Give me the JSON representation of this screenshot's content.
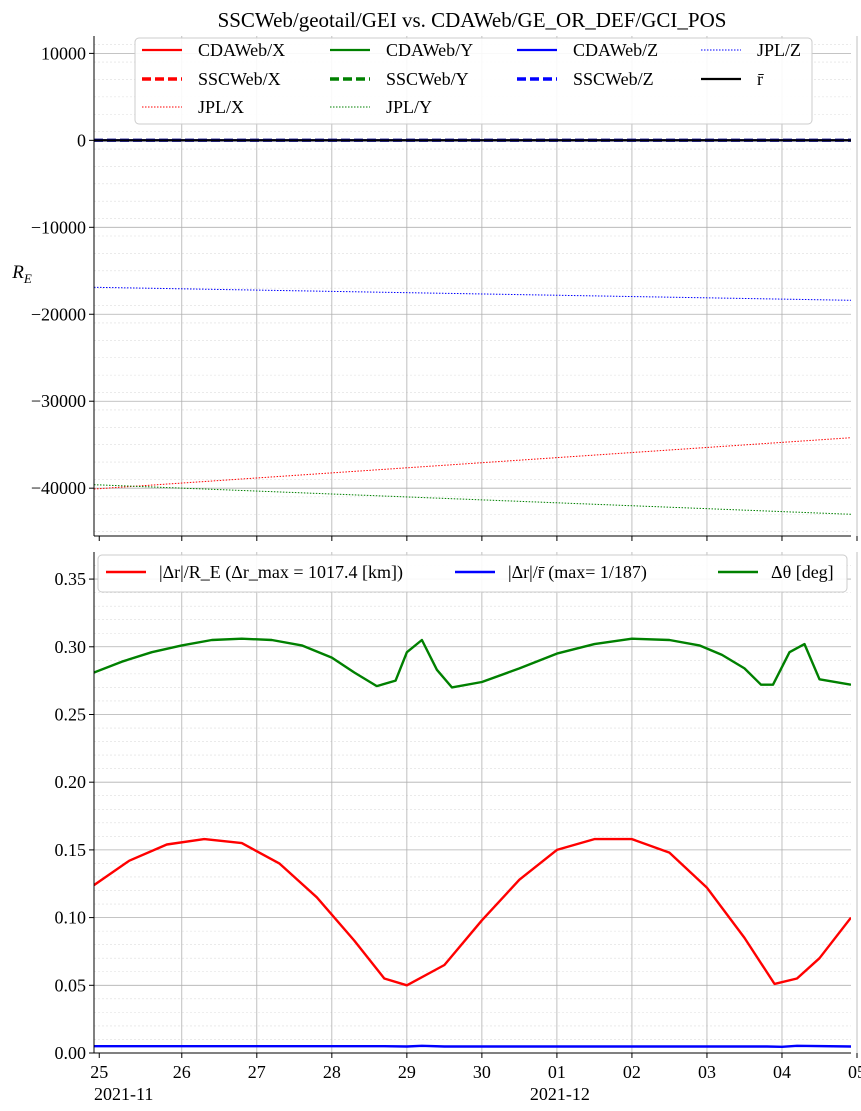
{
  "chart_data": [
    {
      "type": "line",
      "title": "SSCWeb/geotail/GEI vs. CDAWeb/GE_OR_DEF/GCI_POS",
      "ylabel": "R_E",
      "ylim": [
        -45500,
        12000
      ],
      "yticks": [
        10000,
        0,
        -10000,
        -20000,
        -30000,
        -40000
      ],
      "ytick_labels": [
        "10000",
        "0",
        "−10000",
        "−20000",
        "−30000",
        "−40000"
      ],
      "grid": true,
      "legend_position": "top",
      "x_days_range": [
        -0.17,
        9.92
      ],
      "series": [
        {
          "name": "CDAWeb/X",
          "color": "#ff0000",
          "style": "solid",
          "x": [
            -0.17,
            9.92
          ],
          "values": [
            0,
            0
          ]
        },
        {
          "name": "SSCWeb/X",
          "color": "#ff0000",
          "style": "dashed",
          "x": [
            -0.17,
            9.92
          ],
          "values": [
            0,
            0
          ]
        },
        {
          "name": "JPL/X",
          "color": "#ff0000",
          "style": "dotted",
          "x": [
            -0.17,
            9.92
          ],
          "values": [
            -40100,
            -34200
          ]
        },
        {
          "name": "CDAWeb/Y",
          "color": "#008000",
          "style": "solid",
          "x": [
            -0.17,
            9.92
          ],
          "values": [
            0,
            0
          ]
        },
        {
          "name": "SSCWeb/Y",
          "color": "#008000",
          "style": "dashed",
          "x": [
            -0.17,
            9.92
          ],
          "values": [
            0,
            0
          ]
        },
        {
          "name": "JPL/Y",
          "color": "#008000",
          "style": "dotted",
          "x": [
            -0.17,
            9.92
          ],
          "values": [
            -39600,
            -43000
          ]
        },
        {
          "name": "CDAWeb/Z",
          "color": "#0000ff",
          "style": "solid",
          "x": [
            -0.17,
            9.92
          ],
          "values": [
            0,
            0
          ]
        },
        {
          "name": "SSCWeb/Z",
          "color": "#0000ff",
          "style": "dashed",
          "x": [
            -0.17,
            9.92
          ],
          "values": [
            0,
            0
          ]
        },
        {
          "name": "JPL/Z",
          "color": "#0000ff",
          "style": "dotted",
          "x": [
            -0.17,
            9.92
          ],
          "values": [
            -16900,
            -18400
          ]
        },
        {
          "name": "r̄",
          "color": "#000000",
          "style": "solid",
          "x": [
            -0.17,
            9.92
          ],
          "values": [
            0,
            0
          ]
        }
      ]
    },
    {
      "type": "line",
      "ylim": [
        0.0,
        0.37
      ],
      "yticks": [
        0.0,
        0.05,
        0.1,
        0.15,
        0.2,
        0.25,
        0.3,
        0.35
      ],
      "ytick_labels": [
        "0.00",
        "0.05",
        "0.10",
        "0.15",
        "0.20",
        "0.25",
        "0.30",
        "0.35"
      ],
      "grid": true,
      "legend_position": "top",
      "x_days_range": [
        -0.17,
        9.92
      ],
      "x_tick_labels": [
        "26",
        "27",
        "28",
        "29",
        "30",
        "01",
        "02",
        "03",
        "04",
        "05"
      ],
      "x_tick_days": [
        1,
        2,
        3,
        4,
        5,
        6,
        7,
        8,
        9,
        10
      ],
      "x_month_labels": [
        {
          "day": -0.17,
          "label": "2021-11"
        },
        {
          "day": 5.64,
          "label": "2021-12"
        }
      ],
      "first_tick_label": {
        "day": -0.1,
        "label": "25"
      },
      "series": [
        {
          "name": "|Δr|/R_E (Δr_max = 1017.4 [km])",
          "color": "#ff0000",
          "x": [
            -0.17,
            0.3,
            0.8,
            1.3,
            1.8,
            2.3,
            2.8,
            3.3,
            3.7,
            4.0,
            4.5,
            5.0,
            5.5,
            6.0,
            6.5,
            7.0,
            7.5,
            8.0,
            8.5,
            8.9,
            9.2,
            9.5,
            9.92
          ],
          "values": [
            0.124,
            0.142,
            0.154,
            0.158,
            0.155,
            0.14,
            0.115,
            0.083,
            0.055,
            0.05,
            0.065,
            0.098,
            0.128,
            0.15,
            0.158,
            0.158,
            0.148,
            0.122,
            0.085,
            0.051,
            0.055,
            0.07,
            0.1
          ]
        },
        {
          "name": "|Δr|/r̄ (max= 1/187)",
          "color": "#0000ff",
          "x": [
            -0.17,
            3.7,
            4.0,
            4.2,
            4.5,
            8.8,
            9.0,
            9.2,
            9.92
          ],
          "values": [
            0.005,
            0.005,
            0.0048,
            0.0053,
            0.0048,
            0.0048,
            0.0046,
            0.0053,
            0.0048
          ]
        },
        {
          "name": "Δθ [deg]",
          "color": "#008000",
          "x": [
            -0.17,
            0.2,
            0.6,
            1.0,
            1.4,
            1.8,
            2.2,
            2.6,
            3.0,
            3.3,
            3.6,
            3.85,
            4.0,
            4.2,
            4.4,
            4.6,
            5.0,
            5.5,
            6.0,
            6.5,
            7.0,
            7.5,
            7.9,
            8.2,
            8.5,
            8.72,
            8.88,
            9.1,
            9.3,
            9.5,
            9.92
          ],
          "values": [
            0.281,
            0.289,
            0.296,
            0.301,
            0.305,
            0.306,
            0.305,
            0.301,
            0.292,
            0.281,
            0.271,
            0.275,
            0.296,
            0.305,
            0.283,
            0.27,
            0.274,
            0.284,
            0.295,
            0.302,
            0.306,
            0.305,
            0.301,
            0.294,
            0.284,
            0.272,
            0.272,
            0.296,
            0.302,
            0.276,
            0.272
          ]
        }
      ]
    }
  ]
}
